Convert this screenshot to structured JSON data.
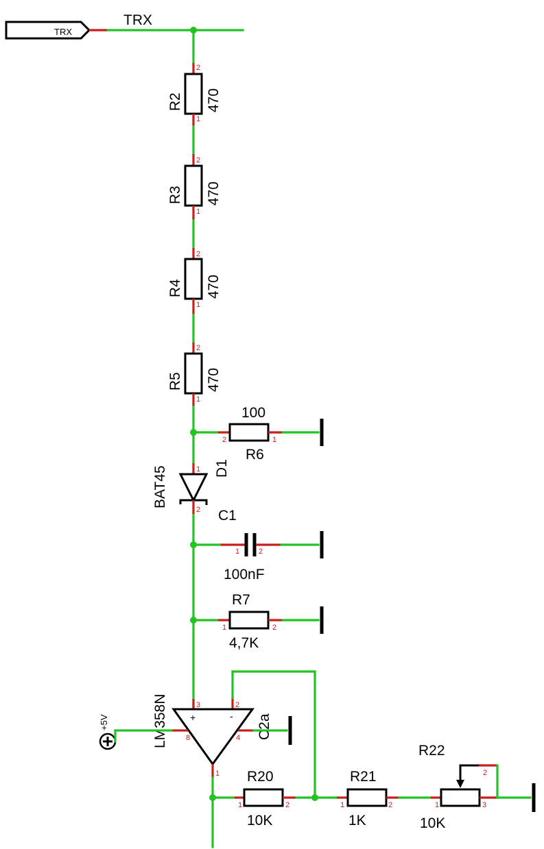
{
  "net": {
    "input_label": "TRX",
    "wire_label": "TRX"
  },
  "resistors": {
    "r2": {
      "ref": "R2",
      "value": "470",
      "pin_top": "2",
      "pin_bottom": "1"
    },
    "r3": {
      "ref": "R3",
      "value": "470",
      "pin_top": "2",
      "pin_bottom": "1"
    },
    "r4": {
      "ref": "R4",
      "value": "470",
      "pin_top": "2",
      "pin_bottom": "1"
    },
    "r5": {
      "ref": "R5",
      "value": "470",
      "pin_top": "2",
      "pin_bottom": "1"
    },
    "r6": {
      "ref": "R6",
      "value": "100",
      "pin_left": "2",
      "pin_right": "1"
    },
    "r7": {
      "ref": "R7",
      "value": "4,7K",
      "pin_left": "1",
      "pin_right": "2"
    },
    "r20": {
      "ref": "R20",
      "value": "10K",
      "pin_left": "1",
      "pin_right": "2"
    },
    "r21": {
      "ref": "R21",
      "value": "1K",
      "pin_left": "1",
      "pin_right": "2"
    },
    "r22": {
      "ref": "R22",
      "value": "10K",
      "pin_left": "1",
      "pin_wiper": "2",
      "pin_right": "3"
    }
  },
  "diode": {
    "ref": "D1",
    "value": "BAT45",
    "pin_top": "1",
    "pin_bottom": "2"
  },
  "capacitor": {
    "ref": "C1",
    "value": "100nF",
    "pin_left": "1",
    "pin_right": "2"
  },
  "opamp": {
    "value": "LM358N",
    "part": "C2a",
    "pin_plus": "3",
    "pin_minus": "2",
    "pin_vcc": "8",
    "pin_gnd": "4",
    "pin_out": "1",
    "plus_sign": "+",
    "minus_sign": "-"
  },
  "supply": {
    "label": "+5V"
  },
  "colors": {
    "wire": "#22c322",
    "pin": "#c81e1e",
    "symbol": "#000000"
  }
}
